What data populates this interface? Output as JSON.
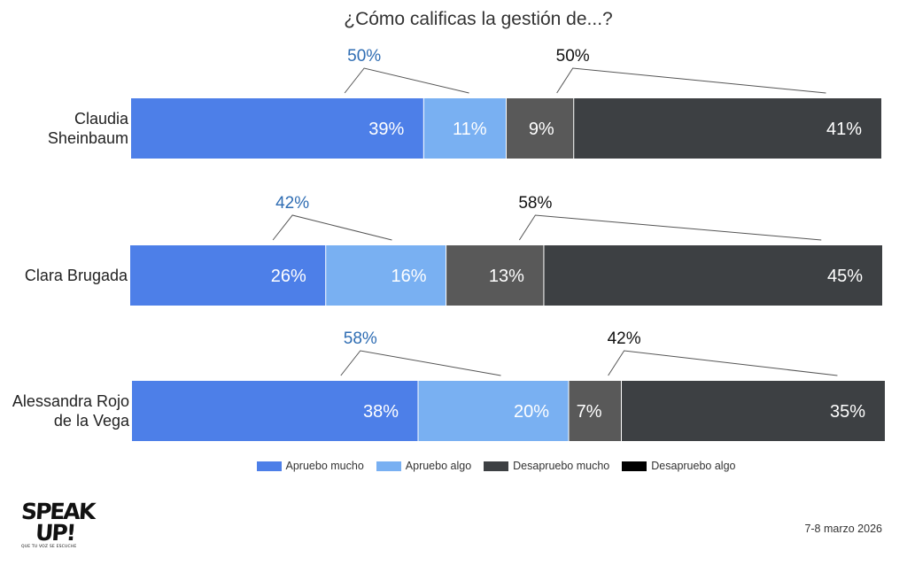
{
  "chart_data": {
    "type": "bar",
    "title": "¿Cómo calificas la gestión de...?",
    "stacked": true,
    "orientation": "horizontal",
    "categories": [
      "Claudia Sheinbaum",
      "Clara Brugada",
      "Alessandra Rojo de la Vega"
    ],
    "category_lines": [
      [
        "Claudia",
        "Sheinbaum"
      ],
      [
        "Clara Brugada"
      ],
      [
        "Alessandra Rojo",
        "de la Vega"
      ]
    ],
    "series": [
      {
        "name": "Apruebo mucho",
        "values": [
          39,
          26,
          38
        ],
        "labels": [
          "39%",
          "26%",
          "38%"
        ],
        "color": "#4d7fe8"
      },
      {
        "name": "Apruebo algo",
        "values": [
          11,
          16,
          20
        ],
        "labels": [
          "11%",
          "16%",
          "20%"
        ],
        "color": "#79b0f2"
      },
      {
        "name": "Desapruebo mucho",
        "values": [
          9,
          13,
          7
        ],
        "labels": [
          "9%",
          "13%",
          "7%"
        ],
        "color": "#595959"
      },
      {
        "name": "Desapruebo algo",
        "values": [
          41,
          45,
          35
        ],
        "labels": [
          "41%",
          "45%",
          "35%"
        ],
        "color": "#3d4043"
      }
    ],
    "approve_totals": [
      "50%",
      "42%",
      "58%"
    ],
    "disapprove_totals": [
      "50%",
      "58%",
      "42%"
    ],
    "approve_total_color": "#2f6db3",
    "disapprove_total_color": "#111111",
    "xlim": [
      0,
      100
    ],
    "grid": false,
    "legend_position": "bottom"
  },
  "legend": {
    "items": [
      {
        "label": "Apruebo mucho",
        "color": "#4d7fe8"
      },
      {
        "label": "Apruebo algo",
        "color": "#79b0f2"
      },
      {
        "label": "Desapruebo mucho",
        "color": "#3d4043"
      },
      {
        "label": "Desapruebo algo",
        "color": "#000000"
      }
    ]
  },
  "logo": {
    "line1": "SPEAK",
    "line2": "UP!",
    "tagline": "QUE TU VOZ SE ESCUCHE"
  },
  "date_note": "7-8 marzo 2026"
}
